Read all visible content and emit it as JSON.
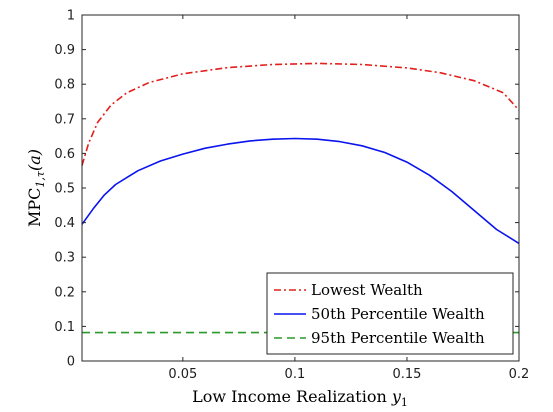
{
  "chart_data": {
    "type": "line",
    "title": "",
    "xlabel_main": "Low Income Realization ",
    "xlabel_var": "y",
    "xlabel_sub": "1",
    "ylabel_main": "MPC",
    "ylabel_sub": "1,τ",
    "ylabel_arg": "(a)",
    "xlim": [
      0.005,
      0.2
    ],
    "ylim": [
      0,
      1
    ],
    "x_ticks": [
      0.05,
      0.1,
      0.15,
      0.2
    ],
    "x_tick_labels": [
      "0.05",
      "0.1",
      "0.15",
      "0.2"
    ],
    "y_ticks": [
      0,
      0.1,
      0.2,
      0.3,
      0.4,
      0.5,
      0.6,
      0.7,
      0.8,
      0.9,
      1
    ],
    "y_tick_labels": [
      "0",
      "0.1",
      "0.2",
      "0.3",
      "0.4",
      "0.5",
      "0.6",
      "0.7",
      "0.8",
      "0.9",
      "1"
    ],
    "grid": false,
    "legend_position": "bottom-right",
    "series": [
      {
        "name": "Lowest Wealth",
        "color": "#e0201b",
        "style": "dash-dot",
        "x": [
          0.005,
          0.008,
          0.012,
          0.018,
          0.025,
          0.035,
          0.05,
          0.07,
          0.09,
          0.11,
          0.13,
          0.15,
          0.165,
          0.18,
          0.193,
          0.2
        ],
        "y": [
          0.565,
          0.63,
          0.69,
          0.74,
          0.775,
          0.805,
          0.83,
          0.848,
          0.857,
          0.86,
          0.857,
          0.847,
          0.833,
          0.81,
          0.775,
          0.725
        ]
      },
      {
        "name": "50th Percentile Wealth",
        "color": "#0a14ee",
        "style": "solid",
        "x": [
          0.005,
          0.01,
          0.015,
          0.02,
          0.03,
          0.04,
          0.05,
          0.06,
          0.07,
          0.08,
          0.09,
          0.1,
          0.11,
          0.12,
          0.13,
          0.14,
          0.15,
          0.16,
          0.17,
          0.18,
          0.19,
          0.2
        ],
        "y": [
          0.395,
          0.44,
          0.48,
          0.51,
          0.55,
          0.578,
          0.598,
          0.615,
          0.627,
          0.636,
          0.641,
          0.643,
          0.641,
          0.634,
          0.622,
          0.603,
          0.575,
          0.537,
          0.49,
          0.435,
          0.38,
          0.34
        ]
      },
      {
        "name": "95th Percentile Wealth",
        "color": "#2a9a2a",
        "style": "dashed",
        "x": [
          0.005,
          0.2
        ],
        "y": [
          0.082,
          0.082
        ]
      }
    ]
  }
}
